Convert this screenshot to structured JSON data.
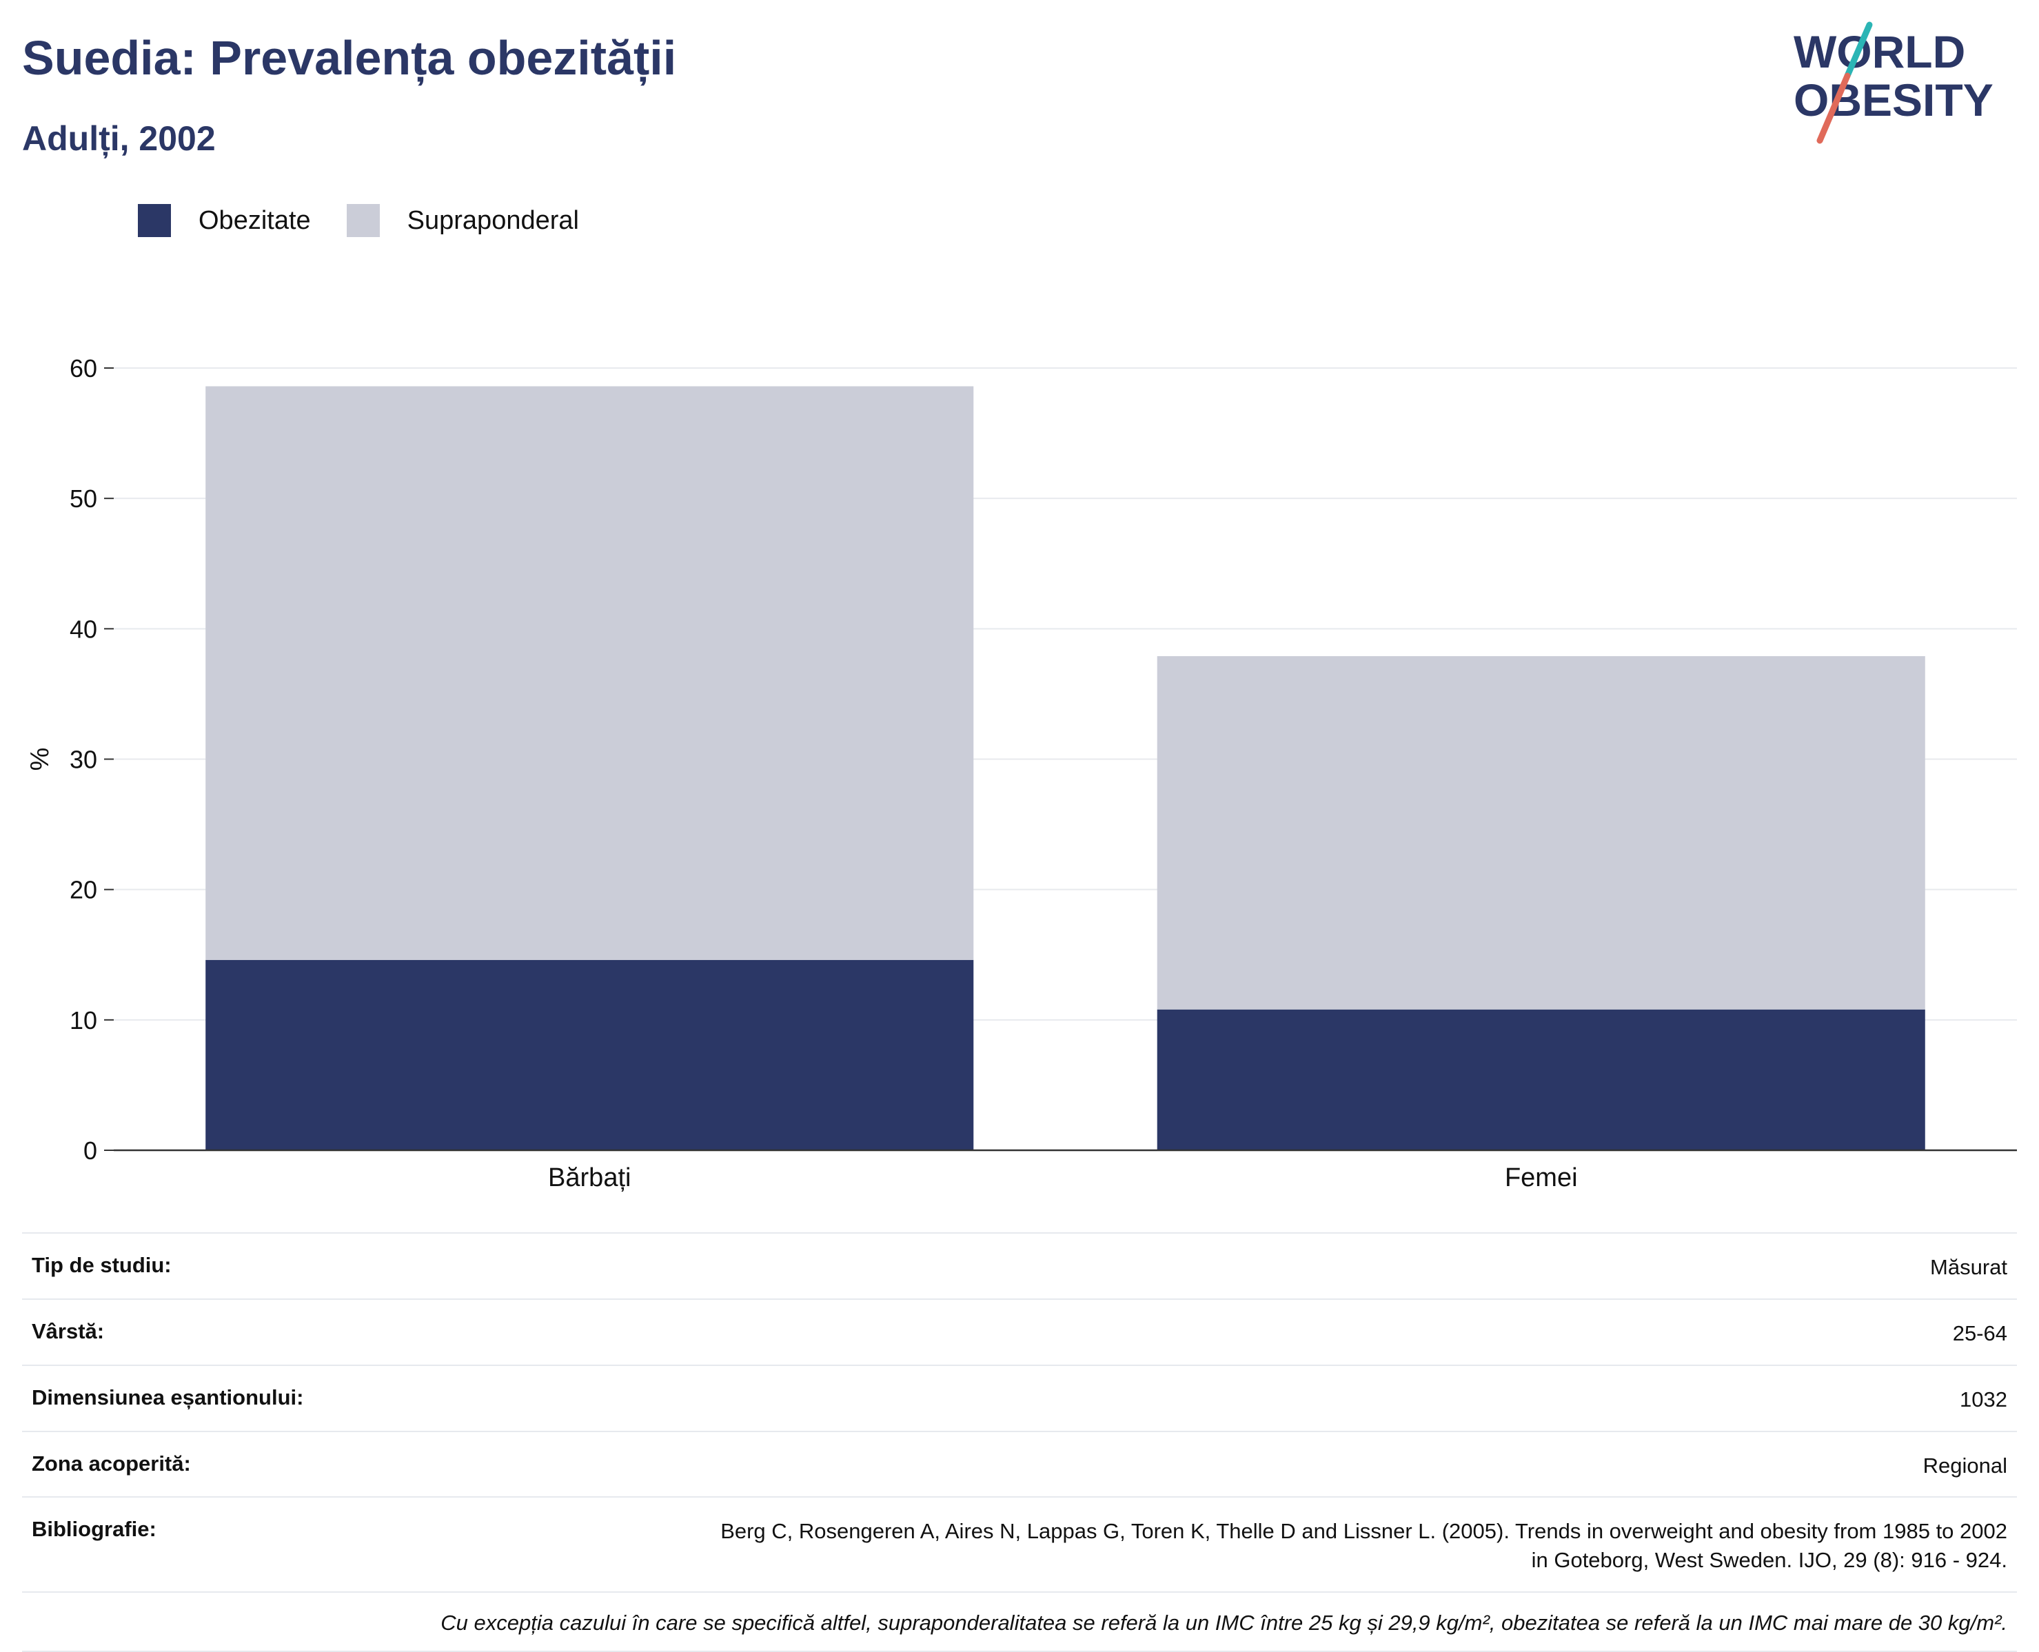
{
  "header": {
    "title": "Suedia: Prevalența obezității",
    "subtitle": "Adulți, 2002"
  },
  "logo": {
    "line1": "WORLD",
    "line2": "OBESITY",
    "text_color": "#2b3766",
    "slash_top_color": "#2bb5b5",
    "slash_bottom_color": "#e06a5a"
  },
  "legend": {
    "items": [
      {
        "label": "Obezitate",
        "color": "#2b3766"
      },
      {
        "label": "Supraponderal",
        "color": "#cbcdd8"
      }
    ]
  },
  "chart_data": {
    "type": "bar",
    "stacked": true,
    "categories": [
      "Bărbați",
      "Femei"
    ],
    "series": [
      {
        "name": "Obezitate",
        "values": [
          14.6,
          10.8
        ],
        "color": "#2b3766"
      },
      {
        "name": "Supraponderal",
        "values": [
          44.0,
          27.1
        ],
        "color": "#cbcdd8"
      }
    ],
    "ylabel": "%",
    "ylim": [
      0,
      60
    ],
    "yticks": [
      "0",
      "10",
      "20",
      "30",
      "40",
      "50",
      "60"
    ],
    "grid": true,
    "legend_position": "top-left"
  },
  "info": {
    "rows": [
      {
        "label": "Tip de studiu:",
        "value": "Măsurat"
      },
      {
        "label": "Vârstă:",
        "value": "25-64"
      },
      {
        "label": "Dimensiunea eșantionului:",
        "value": "1032"
      },
      {
        "label": "Zona acoperită:",
        "value": "Regional"
      }
    ],
    "bibliography_label": "Bibliografie:",
    "bibliography_line1": "Berg C, Rosengeren A, Aires N, Lappas G, Toren K, Thelle D and Lissner L. (2005). Trends in overweight and obesity from 1985 to 2002",
    "bibliography_line2": "in Goteborg, West Sweden. IJO, 29 (8): 916 - 924.",
    "footnote": "Cu excepția cazului în care se specifică altfel, supraponderalitatea se referă la un IMC între 25 kg și 29,9 kg/m², obezitatea se referă la un IMC mai mare de 30 kg/m²."
  }
}
